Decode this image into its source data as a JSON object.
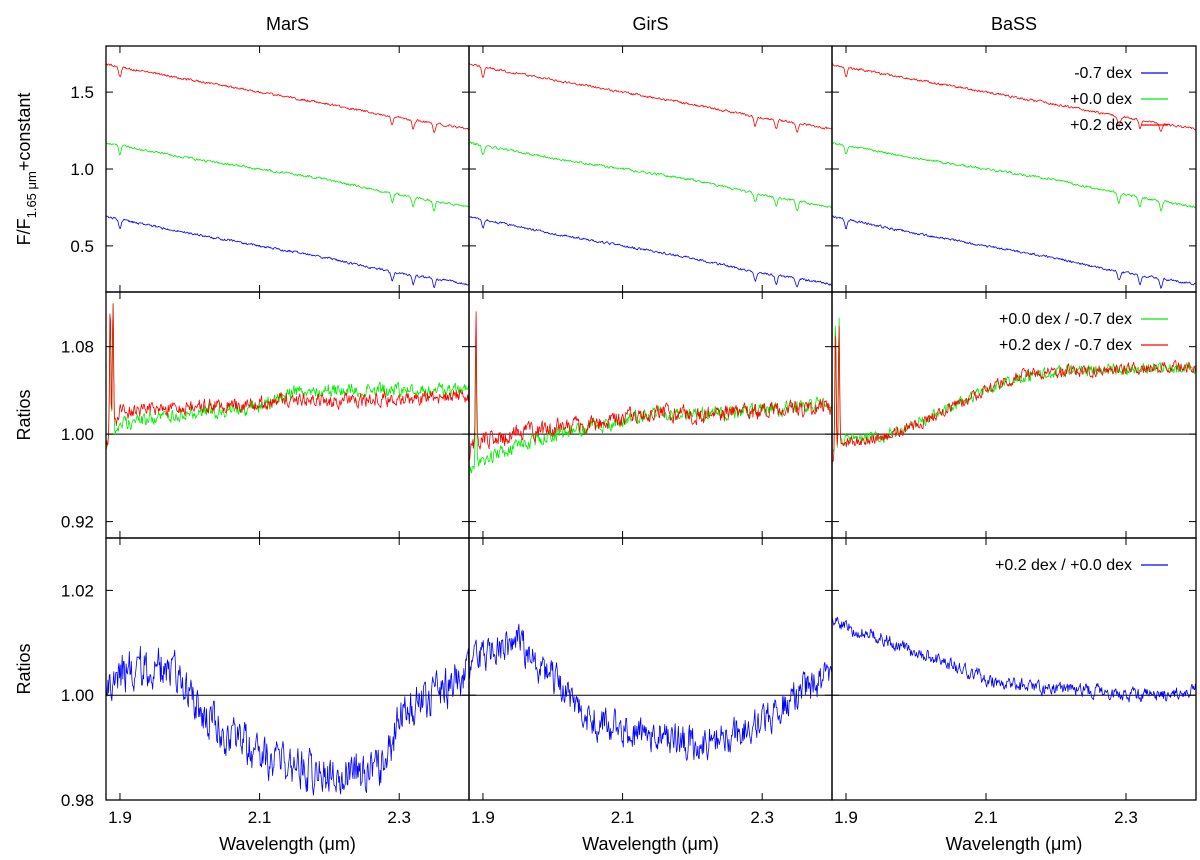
{
  "chart_data": {
    "type": "line",
    "layout": {
      "rows": 3,
      "cols": 3
    },
    "columns": [
      "MarS",
      "GirS",
      "BaSS"
    ],
    "x_range": [
      1.88,
      2.4
    ],
    "x_ticks": [
      "1.9",
      "2.1",
      "2.3"
    ],
    "x_tick_values": [
      1.9,
      2.1,
      2.3
    ],
    "xlabel": "Wavelength (μm)",
    "colors": {
      "blue": "#0000ff",
      "green": "#00ee00",
      "red": "#ff0000",
      "axis": "#000000"
    },
    "rows": [
      {
        "id": "spectra",
        "ylabel_main": "F/F",
        "ylabel_sub": "1.65 μm",
        "ylabel_tail": "+constant",
        "ylim": [
          0.2,
          1.8
        ],
        "y_ticks": [
          "0.5",
          "1.0",
          "1.5"
        ],
        "y_tick_values": [
          0.5,
          1.0,
          1.5
        ],
        "legend": [
          "-0.7 dex",
          "+0.0 dex",
          "+0.2 dex"
        ],
        "legend_position": "top-right"
      },
      {
        "id": "ratios-1",
        "ylabel_main": "Ratios",
        "ylim": [
          0.905,
          1.13
        ],
        "y_ticks": [
          "0.92",
          "1.00",
          "1.08"
        ],
        "y_tick_values": [
          0.92,
          1.0,
          1.08
        ],
        "reference_line": 1.0,
        "legend": [
          "+0.0 dex / -0.7 dex",
          "+0.2 dex / -0.7 dex"
        ],
        "legend_position": "top-right"
      },
      {
        "id": "ratios-2",
        "ylabel_main": "Ratios",
        "ylim": [
          0.98,
          1.03
        ],
        "y_ticks": [
          "0.98",
          "1.00",
          "1.02"
        ],
        "y_tick_values": [
          0.98,
          1.0,
          1.02
        ],
        "reference_line": 1.0,
        "legend": [
          "+0.2 dex / +0.0 dex"
        ],
        "legend_position": "top-right"
      }
    ],
    "series": [
      {
        "row": 0,
        "col": 0,
        "name": "-0.7 dex",
        "color": "blue",
        "x": [
          1.88,
          2.0,
          2.1,
          2.2,
          2.28,
          2.4
        ],
        "y": [
          0.69,
          0.58,
          0.5,
          0.42,
          0.34,
          0.25
        ],
        "noise": 0.012,
        "dips": [
          1.9,
          2.29,
          2.32,
          2.35
        ]
      },
      {
        "row": 0,
        "col": 0,
        "name": "+0.0 dex",
        "color": "green",
        "x": [
          1.88,
          2.0,
          2.1,
          2.2,
          2.28,
          2.4
        ],
        "y": [
          1.17,
          1.07,
          1.0,
          0.93,
          0.85,
          0.75
        ],
        "noise": 0.012,
        "dips": [
          1.9,
          2.29,
          2.32,
          2.35
        ]
      },
      {
        "row": 0,
        "col": 0,
        "name": "+0.2 dex",
        "color": "red",
        "x": [
          1.88,
          2.0,
          2.1,
          2.2,
          2.28,
          2.4
        ],
        "y": [
          1.68,
          1.58,
          1.5,
          1.42,
          1.35,
          1.26
        ],
        "noise": 0.012,
        "dips": [
          1.9,
          2.29,
          2.32,
          2.35
        ]
      },
      {
        "row": 0,
        "col": 1,
        "name": "-0.7 dex",
        "color": "blue",
        "x": [
          1.88,
          2.0,
          2.1,
          2.2,
          2.28,
          2.4
        ],
        "y": [
          0.69,
          0.58,
          0.5,
          0.42,
          0.34,
          0.25
        ],
        "noise": 0.012,
        "dips": [
          1.9,
          2.29,
          2.32,
          2.35
        ]
      },
      {
        "row": 0,
        "col": 1,
        "name": "+0.0 dex",
        "color": "green",
        "x": [
          1.88,
          2.0,
          2.1,
          2.2,
          2.28,
          2.4
        ],
        "y": [
          1.17,
          1.07,
          1.0,
          0.93,
          0.85,
          0.75
        ],
        "noise": 0.012,
        "dips": [
          1.9,
          2.29,
          2.32,
          2.35
        ]
      },
      {
        "row": 0,
        "col": 1,
        "name": "+0.2 dex",
        "color": "red",
        "x": [
          1.88,
          2.0,
          2.1,
          2.2,
          2.28,
          2.4
        ],
        "y": [
          1.68,
          1.58,
          1.5,
          1.42,
          1.35,
          1.26
        ],
        "noise": 0.012,
        "dips": [
          1.9,
          2.29,
          2.32,
          2.35
        ]
      },
      {
        "row": 0,
        "col": 2,
        "name": "-0.7 dex",
        "color": "blue",
        "x": [
          1.88,
          2.0,
          2.1,
          2.2,
          2.28,
          2.4
        ],
        "y": [
          0.69,
          0.58,
          0.5,
          0.42,
          0.34,
          0.25
        ],
        "noise": 0.012,
        "dips": [
          1.9,
          2.29,
          2.32,
          2.35
        ]
      },
      {
        "row": 0,
        "col": 2,
        "name": "+0.0 dex",
        "color": "green",
        "x": [
          1.88,
          2.0,
          2.1,
          2.2,
          2.28,
          2.4
        ],
        "y": [
          1.17,
          1.07,
          1.0,
          0.93,
          0.85,
          0.75
        ],
        "noise": 0.012,
        "dips": [
          1.9,
          2.29,
          2.32,
          2.35
        ]
      },
      {
        "row": 0,
        "col": 2,
        "name": "+0.2 dex",
        "color": "red",
        "x": [
          1.88,
          2.0,
          2.1,
          2.2,
          2.28,
          2.4
        ],
        "y": [
          1.68,
          1.58,
          1.5,
          1.42,
          1.35,
          1.26
        ],
        "noise": 0.012,
        "dips": [
          1.9,
          2.29,
          2.32,
          2.35
        ]
      },
      {
        "row": 1,
        "col": 0,
        "name": "+0.0 dex / -0.7 dex",
        "color": "green",
        "x": [
          1.88,
          1.9,
          2.0,
          2.1,
          2.15,
          2.2,
          2.3,
          2.4
        ],
        "y": [
          0.99,
          1.01,
          1.02,
          1.025,
          1.04,
          1.04,
          1.04,
          1.04
        ],
        "noise": 0.01,
        "spikes": [
          1.886,
          1.89
        ]
      },
      {
        "row": 1,
        "col": 0,
        "name": "+0.2 dex / -0.7 dex",
        "color": "red",
        "x": [
          1.88,
          1.9,
          2.0,
          2.1,
          2.15,
          2.2,
          2.3,
          2.4
        ],
        "y": [
          0.99,
          1.02,
          1.025,
          1.028,
          1.033,
          1.03,
          1.032,
          1.035
        ],
        "noise": 0.01,
        "spikes": [
          1.886,
          1.89
        ]
      },
      {
        "row": 1,
        "col": 1,
        "name": "+0.0 dex / -0.7 dex",
        "color": "green",
        "x": [
          1.88,
          1.9,
          1.95,
          2.0,
          2.1,
          2.15,
          2.2,
          2.3,
          2.4
        ],
        "y": [
          0.965,
          0.975,
          0.99,
          1.0,
          1.012,
          1.02,
          1.018,
          1.022,
          1.028
        ],
        "noise": 0.01,
        "spikes": [
          1.89
        ]
      },
      {
        "row": 1,
        "col": 1,
        "name": "+0.2 dex / -0.7 dex",
        "color": "red",
        "x": [
          1.88,
          1.9,
          1.95,
          2.0,
          2.1,
          2.15,
          2.2,
          2.3,
          2.4
        ],
        "y": [
          0.985,
          0.995,
          1.0,
          1.005,
          1.015,
          1.02,
          1.018,
          1.02,
          1.025
        ],
        "noise": 0.012,
        "spikes": [
          1.89
        ]
      },
      {
        "row": 1,
        "col": 2,
        "name": "+0.0 dex / -0.7 dex",
        "color": "green",
        "x": [
          1.88,
          1.9,
          1.95,
          2.0,
          2.05,
          2.1,
          2.15,
          2.2,
          2.3,
          2.4
        ],
        "y": [
          0.985,
          0.995,
          0.998,
          1.01,
          1.025,
          1.04,
          1.052,
          1.057,
          1.06,
          1.06
        ],
        "noise": 0.008,
        "spikes": [
          1.885,
          1.89
        ]
      },
      {
        "row": 1,
        "col": 2,
        "name": "+0.2 dex / -0.7 dex",
        "color": "red",
        "x": [
          1.88,
          1.9,
          1.95,
          2.0,
          2.05,
          2.1,
          2.15,
          2.2,
          2.3,
          2.4
        ],
        "y": [
          0.98,
          0.992,
          0.997,
          1.008,
          1.025,
          1.04,
          1.055,
          1.057,
          1.06,
          1.062
        ],
        "noise": 0.008,
        "spikes": [
          1.885,
          1.89
        ]
      },
      {
        "row": 2,
        "col": 0,
        "name": "+0.2 dex / +0.0 dex",
        "color": "blue",
        "x": [
          1.88,
          1.92,
          1.95,
          1.98,
          2.0,
          2.05,
          2.1,
          2.15,
          2.2,
          2.25,
          2.28,
          2.3,
          2.35,
          2.4
        ],
        "y": [
          1.003,
          1.005,
          1.006,
          1.004,
          1.0,
          0.993,
          0.988,
          0.986,
          0.985,
          0.985,
          0.987,
          0.996,
          1.0,
          1.004
        ],
        "noise": 0.006
      },
      {
        "row": 2,
        "col": 1,
        "name": "+0.2 dex / +0.0 dex",
        "color": "blue",
        "x": [
          1.88,
          1.9,
          1.95,
          2.0,
          2.05,
          2.1,
          2.15,
          2.2,
          2.25,
          2.3,
          2.35,
          2.4
        ],
        "y": [
          1.005,
          1.008,
          1.01,
          1.003,
          0.996,
          0.993,
          0.992,
          0.991,
          0.992,
          0.995,
          1.0,
          1.004
        ],
        "noise": 0.005
      },
      {
        "row": 2,
        "col": 2,
        "name": "+0.2 dex / +0.0 dex",
        "color": "blue",
        "x": [
          1.88,
          1.9,
          1.95,
          2.0,
          2.05,
          2.1,
          2.15,
          2.2,
          2.25,
          2.3,
          2.35,
          2.4
        ],
        "y": [
          1.015,
          1.013,
          1.011,
          1.008,
          1.006,
          1.003,
          1.002,
          1.001,
          1.001,
          1.0,
          1.0,
          1.001
        ],
        "noise": 0.002
      }
    ]
  }
}
